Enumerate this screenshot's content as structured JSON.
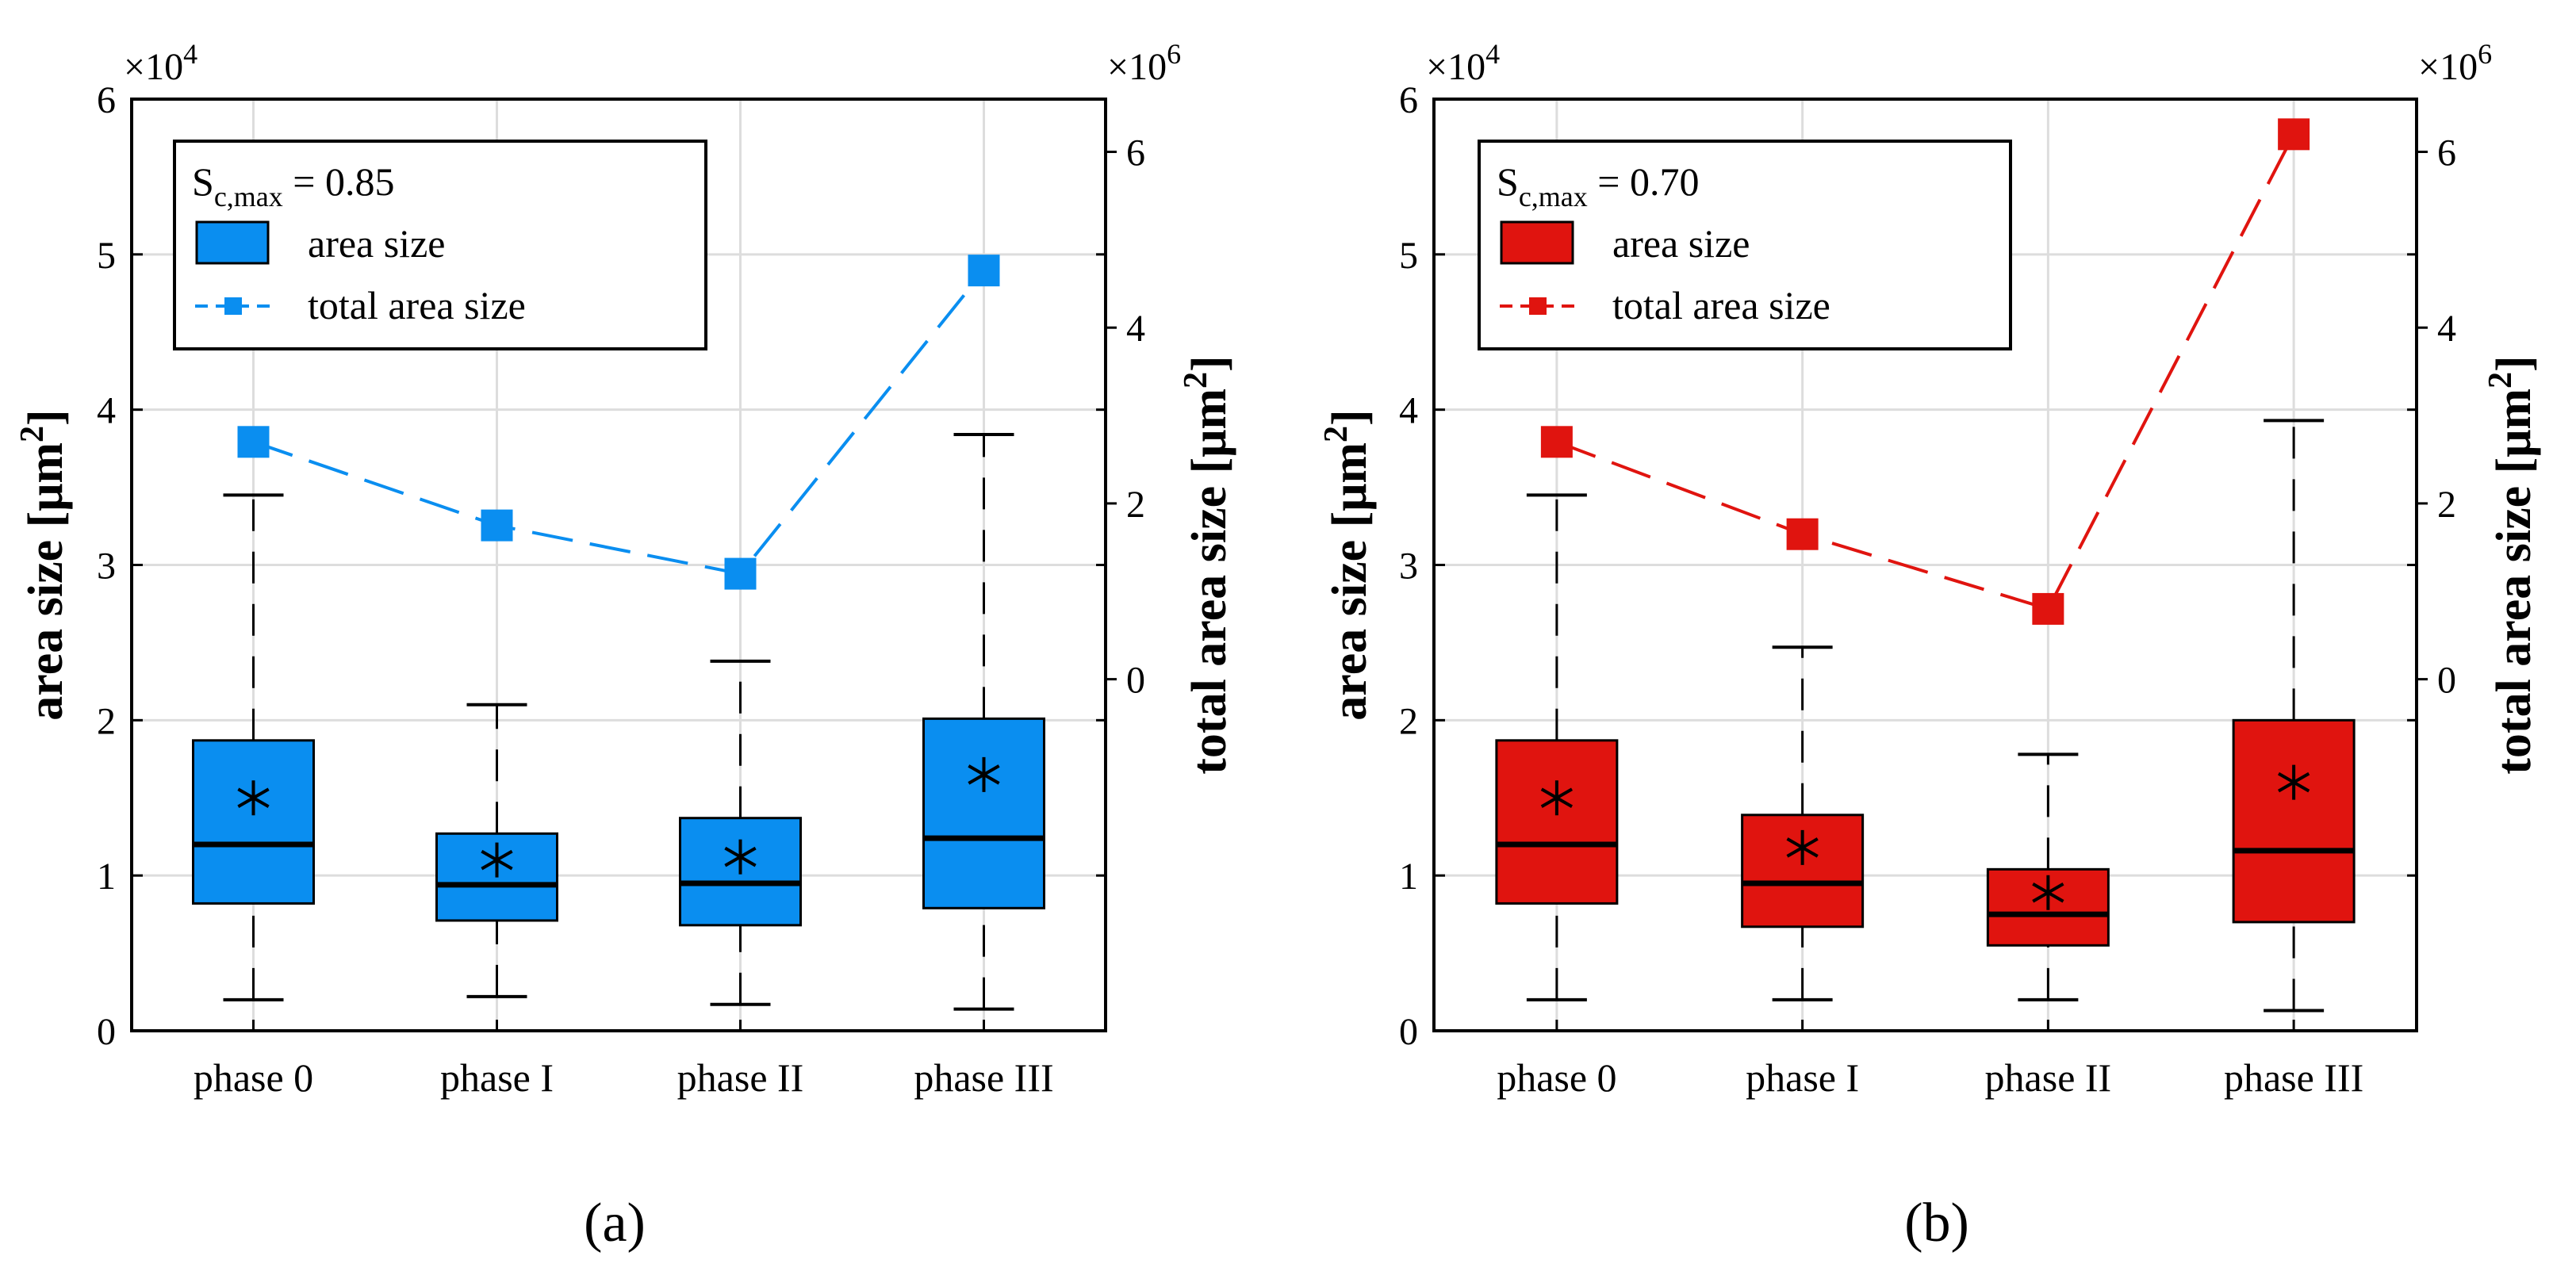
{
  "chart_data": [
    {
      "type": "box",
      "panel_label": "(a)",
      "categories": [
        "phase 0",
        "phase I",
        "phase II",
        "phase III"
      ],
      "ylabel": "area size [μm",
      "ylabel_sup": "2",
      "ylabel_close": "]",
      "ylim": [
        0,
        6
      ],
      "yticks": [
        "0",
        "1",
        "2",
        "3",
        "4",
        "5",
        "6"
      ],
      "y_exponent": "×10",
      "y_exponent_power": "4",
      "y2label": "total area size [μm",
      "y2label_sup": "2",
      "y2label_close": "]",
      "y2lim": [
        -4,
        6.6
      ],
      "y2ticks": [
        "0",
        "2",
        "4",
        "6"
      ],
      "y2_exponent": "×10",
      "y2_exponent_power": "6",
      "color": "#0a8ef0",
      "legend": {
        "title_main": "S",
        "title_sub": "c,max",
        "title_value": " = 0.85",
        "box_label": "area size",
        "line_label": "total area size"
      },
      "boxes": [
        {
          "whisker_low": 0.2,
          "q1": 0.82,
          "median": 1.2,
          "q3": 1.87,
          "whisker_high": 3.45,
          "mean": 1.5
        },
        {
          "whisker_low": 0.22,
          "q1": 0.71,
          "median": 0.94,
          "q3": 1.27,
          "whisker_high": 2.1,
          "mean": 1.1
        },
        {
          "whisker_low": 0.17,
          "q1": 0.68,
          "median": 0.95,
          "q3": 1.37,
          "whisker_high": 2.38,
          "mean": 1.12
        },
        {
          "whisker_low": 0.14,
          "q1": 0.79,
          "median": 1.24,
          "q3": 2.01,
          "whisker_high": 3.84,
          "mean": 1.65
        }
      ],
      "total_area_size": [
        2.7,
        1.75,
        1.2,
        4.65
      ]
    },
    {
      "type": "box",
      "panel_label": "(b)",
      "categories": [
        "phase 0",
        "phase I",
        "phase II",
        "phase III"
      ],
      "ylabel": "area size [μm",
      "ylabel_sup": "2",
      "ylabel_close": "]",
      "ylim": [
        0,
        6
      ],
      "yticks": [
        "0",
        "1",
        "2",
        "3",
        "4",
        "5",
        "6"
      ],
      "y_exponent": "×10",
      "y_exponent_power": "4",
      "y2label": "total area size [μm",
      "y2label_sup": "2",
      "y2label_close": "]",
      "y2lim": [
        -4,
        6.6
      ],
      "y2ticks": [
        "0",
        "2",
        "4",
        "6"
      ],
      "y2_exponent": "×10",
      "y2_exponent_power": "6",
      "color": "#e0140f",
      "legend": {
        "title_main": "S",
        "title_sub": "c,max",
        "title_value": " = 0.70",
        "box_label": "area size",
        "line_label": "total area size"
      },
      "boxes": [
        {
          "whisker_low": 0.2,
          "q1": 0.82,
          "median": 1.2,
          "q3": 1.87,
          "whisker_high": 3.45,
          "mean": 1.5
        },
        {
          "whisker_low": 0.2,
          "q1": 0.67,
          "median": 0.95,
          "q3": 1.39,
          "whisker_high": 2.47,
          "mean": 1.18
        },
        {
          "whisker_low": 0.2,
          "q1": 0.55,
          "median": 0.75,
          "q3": 1.04,
          "whisker_high": 1.78,
          "mean": 0.89
        },
        {
          "whisker_low": 0.13,
          "q1": 0.7,
          "median": 1.16,
          "q3": 2.0,
          "whisker_high": 3.93,
          "mean": 1.6
        }
      ],
      "total_area_size": [
        2.7,
        1.65,
        0.8,
        6.2
      ]
    }
  ]
}
